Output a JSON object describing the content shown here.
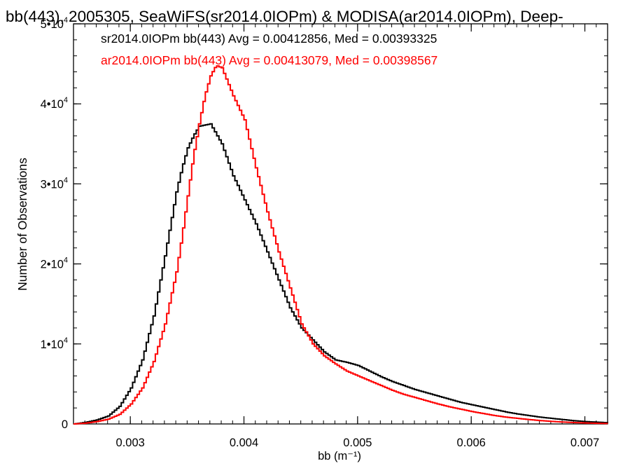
{
  "chart_data": {
    "type": "line",
    "title": "bb(443), 2005305, SeaWiFS(sr2014.0IOPm) & MODISA(ar2014.0IOPm), Deep-",
    "xlabel": "bb (m⁻¹)",
    "ylabel": "Number of Observations",
    "xlim": [
      0.0025,
      0.0072
    ],
    "ylim": [
      0,
      50000
    ],
    "x_ticks": [
      0.003,
      0.004,
      0.005,
      0.006,
      0.007
    ],
    "x_tick_labels": [
      "0.003",
      "0.004",
      "0.005",
      "0.006",
      "0.007"
    ],
    "y_ticks": [
      0,
      10000,
      20000,
      30000,
      40000,
      50000
    ],
    "y_tick_labels": [
      {
        "base": "0",
        "exp": ""
      },
      {
        "base": "1•10",
        "exp": "4"
      },
      {
        "base": "2•10",
        "exp": "4"
      },
      {
        "base": "3•10",
        "exp": "4"
      },
      {
        "base": "4•10",
        "exp": "4"
      },
      {
        "base": "5•10",
        "exp": "4"
      }
    ],
    "grid": false,
    "legend_position": "top-left",
    "series": [
      {
        "name": "sr2014.0IOPm",
        "legend_text": "sr2014.0IOPm bb(443) Avg = 0.00412856, Med = 0.00393325",
        "color": "#000000",
        "x": [
          0.0025,
          0.0026,
          0.0027,
          0.0028,
          0.0029,
          0.003,
          0.0031,
          0.0032,
          0.0033,
          0.00335,
          0.0034,
          0.00345,
          0.0035,
          0.00355,
          0.0036,
          0.0037,
          0.0038,
          0.0039,
          0.004,
          0.0041,
          0.0042,
          0.0043,
          0.0044,
          0.0045,
          0.0046,
          0.0047,
          0.0048,
          0.0049,
          0.005,
          0.0051,
          0.0052,
          0.0053,
          0.0054,
          0.0055,
          0.0056,
          0.0057,
          0.0058,
          0.0059,
          0.006,
          0.0061,
          0.0062,
          0.0063,
          0.0064,
          0.0065,
          0.0066,
          0.0067,
          0.0068,
          0.0069,
          0.007,
          0.0071,
          0.0072
        ],
        "y": [
          0,
          200,
          500,
          1000,
          2200,
          4500,
          8000,
          13500,
          21000,
          25000,
          29000,
          32000,
          34500,
          36000,
          37200,
          37500,
          35000,
          31000,
          28000,
          25000,
          21500,
          18000,
          14500,
          12000,
          10500,
          9000,
          8000,
          7700,
          7300,
          6600,
          5900,
          5300,
          4800,
          4300,
          3900,
          3500,
          3100,
          2700,
          2400,
          2100,
          1800,
          1500,
          1250,
          1050,
          850,
          700,
          550,
          400,
          300,
          220,
          150
        ]
      },
      {
        "name": "ar2014.0IOPm",
        "legend_text": "ar2014.0IOPm bb(443) Avg = 0.00413079, Med = 0.00398567",
        "color": "#ff0000",
        "x": [
          0.0025,
          0.0026,
          0.0027,
          0.0028,
          0.0029,
          0.003,
          0.0031,
          0.0032,
          0.0033,
          0.0034,
          0.00345,
          0.0035,
          0.00355,
          0.0036,
          0.00365,
          0.0037,
          0.00375,
          0.0038,
          0.0039,
          0.004,
          0.0041,
          0.0042,
          0.0043,
          0.0044,
          0.0045,
          0.0046,
          0.0047,
          0.0048,
          0.0049,
          0.005,
          0.0051,
          0.0052,
          0.0053,
          0.0054,
          0.0055,
          0.0056,
          0.0057,
          0.0058,
          0.0059,
          0.006,
          0.0061,
          0.0062,
          0.0063,
          0.0064,
          0.0065,
          0.0066,
          0.0067,
          0.0068,
          0.0069,
          0.007,
          0.0071,
          0.0072
        ],
        "y": [
          0,
          100,
          300,
          600,
          1200,
          2500,
          4500,
          7800,
          12500,
          19000,
          23500,
          28500,
          33500,
          37500,
          41000,
          43500,
          44800,
          44500,
          41000,
          38000,
          32000,
          26500,
          21500,
          17000,
          12500,
          10000,
          8500,
          7500,
          6600,
          6000,
          5400,
          4800,
          4200,
          3700,
          3300,
          2900,
          2500,
          2150,
          1850,
          1550,
          1300,
          1050,
          850,
          700,
          550,
          420,
          320,
          240,
          170,
          120,
          80,
          50
        ]
      }
    ]
  }
}
